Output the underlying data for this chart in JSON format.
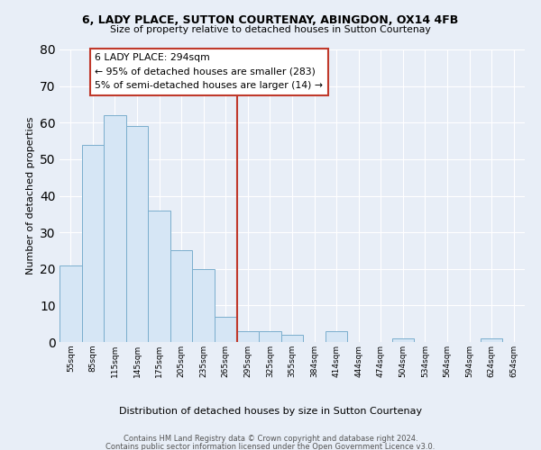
{
  "title": "6, LADY PLACE, SUTTON COURTENAY, ABINGDON, OX14 4FB",
  "subtitle": "Size of property relative to detached houses in Sutton Courtenay",
  "xlabel": "Distribution of detached houses by size in Sutton Courtenay",
  "ylabel": "Number of detached properties",
  "bar_labels": [
    "55sqm",
    "85sqm",
    "115sqm",
    "145sqm",
    "175sqm",
    "205sqm",
    "235sqm",
    "265sqm",
    "295sqm",
    "325sqm",
    "355sqm",
    "384sqm",
    "414sqm",
    "444sqm",
    "474sqm",
    "504sqm",
    "534sqm",
    "564sqm",
    "594sqm",
    "624sqm",
    "654sqm"
  ],
  "bar_values": [
    21,
    54,
    62,
    59,
    36,
    25,
    20,
    7,
    3,
    3,
    2,
    0,
    3,
    0,
    0,
    1,
    0,
    0,
    0,
    1,
    0
  ],
  "bar_color": "#d6e6f5",
  "bar_edge_color": "#7aaecd",
  "vline_index": 8,
  "vline_color": "#c0392b",
  "annotation_title": "6 LADY PLACE: 294sqm",
  "annotation_line1": "← 95% of detached houses are smaller (283)",
  "annotation_line2": "5% of semi-detached houses are larger (14) →",
  "annotation_box_color": "#c0392b",
  "background_color": "#e8eef7",
  "grid_color": "#ffffff",
  "footer_line1": "Contains HM Land Registry data © Crown copyright and database right 2024.",
  "footer_line2": "Contains public sector information licensed under the Open Government Licence v3.0.",
  "ylim": [
    0,
    80
  ],
  "yticks": [
    0,
    10,
    20,
    30,
    40,
    50,
    60,
    70,
    80
  ]
}
